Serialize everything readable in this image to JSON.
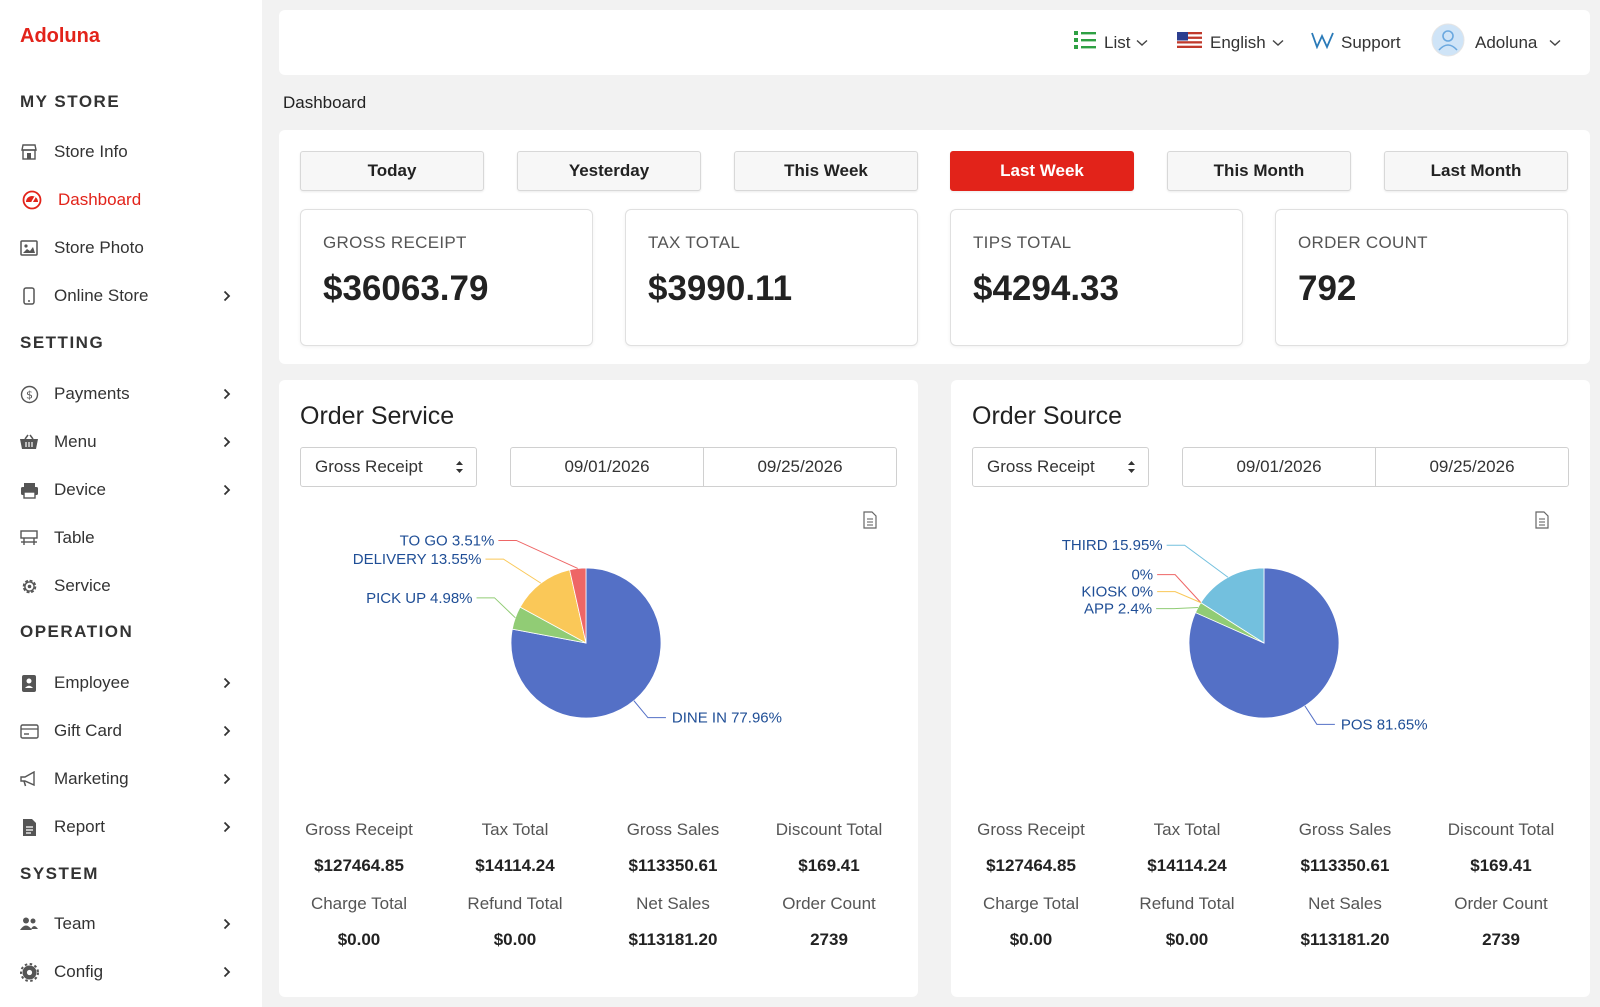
{
  "brand": "Adoluna",
  "sidebar": {
    "sections": [
      {
        "title": "MY STORE"
      },
      {
        "title": "SETTING"
      },
      {
        "title": "OPERATION"
      },
      {
        "title": "SYSTEM"
      }
    ],
    "items": [
      {
        "label": "Store Info",
        "icon": "store-icon"
      },
      {
        "label": "Dashboard",
        "icon": "gauge-icon",
        "active": true
      },
      {
        "label": "Store Photo",
        "icon": "photo-icon"
      },
      {
        "label": "Online Store",
        "icon": "mobile-icon",
        "chevron": true
      },
      {
        "label": "Payments",
        "icon": "dollar-circle-icon",
        "chevron": true
      },
      {
        "label": "Menu",
        "icon": "basket-icon",
        "chevron": true
      },
      {
        "label": "Device",
        "icon": "printer-icon",
        "chevron": true
      },
      {
        "label": "Table",
        "icon": "table-icon"
      },
      {
        "label": "Service",
        "icon": "gear-icon"
      },
      {
        "label": "Employee",
        "icon": "badge-icon",
        "chevron": true
      },
      {
        "label": "Gift Card",
        "icon": "card-icon",
        "chevron": true
      },
      {
        "label": "Marketing",
        "icon": "megaphone-icon",
        "chevron": true
      },
      {
        "label": "Report",
        "icon": "report-icon",
        "chevron": true
      },
      {
        "label": "Team",
        "icon": "users-icon",
        "chevron": true
      },
      {
        "label": "Config",
        "icon": "cog-icon",
        "chevron": true
      }
    ]
  },
  "topbar": {
    "view": "List",
    "language": "English",
    "support": "Support",
    "user": "Adoluna"
  },
  "breadcrumb": "Dashboard",
  "periods": [
    "Today",
    "Yesterday",
    "This Week",
    "Last Week",
    "This Month",
    "Last Month"
  ],
  "active_period": "Last Week",
  "stats": [
    {
      "label": "GROSS RECEIPT",
      "value": "$36063.79"
    },
    {
      "label": "TAX TOTAL",
      "value": "$3990.11"
    },
    {
      "label": "TIPS TOTAL",
      "value": "$4294.33"
    },
    {
      "label": "ORDER COUNT",
      "value": "792"
    }
  ],
  "panels": [
    {
      "title": "Order Service",
      "metric_select": "Gross Receipt",
      "date_from": "09/01/2026",
      "date_to": "09/25/2026",
      "metrics": [
        {
          "label": "Gross Receipt",
          "value": "$127464.85"
        },
        {
          "label": "Tax Total",
          "value": "$14114.24"
        },
        {
          "label": "Gross Sales",
          "value": "$113350.61"
        },
        {
          "label": "Discount Total",
          "value": "$169.41"
        },
        {
          "label": "Charge Total",
          "value": "$0.00"
        },
        {
          "label": "Refund Total",
          "value": "$0.00"
        },
        {
          "label": "Net Sales",
          "value": "$113181.20"
        },
        {
          "label": "Order Count",
          "value": "2739"
        }
      ]
    },
    {
      "title": "Order Source",
      "metric_select": "Gross Receipt",
      "date_from": "09/01/2026",
      "date_to": "09/25/2026",
      "metrics": [
        {
          "label": "Gross Receipt",
          "value": "$127464.85"
        },
        {
          "label": "Tax Total",
          "value": "$14114.24"
        },
        {
          "label": "Gross Sales",
          "value": "$113350.61"
        },
        {
          "label": "Discount Total",
          "value": "$169.41"
        },
        {
          "label": "Charge Total",
          "value": "$0.00"
        },
        {
          "label": "Refund Total",
          "value": "$0.00"
        },
        {
          "label": "Net Sales",
          "value": "$113181.20"
        },
        {
          "label": "Order Count",
          "value": "2739"
        }
      ]
    }
  ],
  "chart_data": [
    {
      "type": "pie",
      "series": [
        {
          "name": "DINE IN",
          "value": 77.96,
          "label": "DINE IN 77.96%",
          "color": "#5470c6"
        },
        {
          "name": "PICK UP",
          "value": 4.98,
          "label": "PICK UP 4.98%",
          "color": "#91cc75"
        },
        {
          "name": "DELIVERY",
          "value": 13.55,
          "label": "DELIVERY 13.55%",
          "color": "#fac858"
        },
        {
          "name": "TO GO",
          "value": 3.51,
          "label": "TO GO 3.51%",
          "color": "#ee6666"
        }
      ]
    },
    {
      "type": "pie",
      "series": [
        {
          "name": "POS",
          "value": 81.65,
          "label": "POS 81.65%",
          "color": "#5470c6"
        },
        {
          "name": "APP",
          "value": 2.4,
          "label": "APP 2.4%",
          "color": "#91cc75"
        },
        {
          "name": "",
          "value": 0,
          "label": "0%",
          "color": "#ee6666"
        },
        {
          "name": "KIOSK",
          "value": 0,
          "label": "KIOSK 0%",
          "color": "#fac858"
        },
        {
          "name": "THIRD",
          "value": 15.95,
          "label": "THIRD 15.95%",
          "color": "#73c0de"
        }
      ]
    }
  ],
  "colors": {
    "accent": "#e2231a",
    "label_text": "#1f4e96"
  }
}
